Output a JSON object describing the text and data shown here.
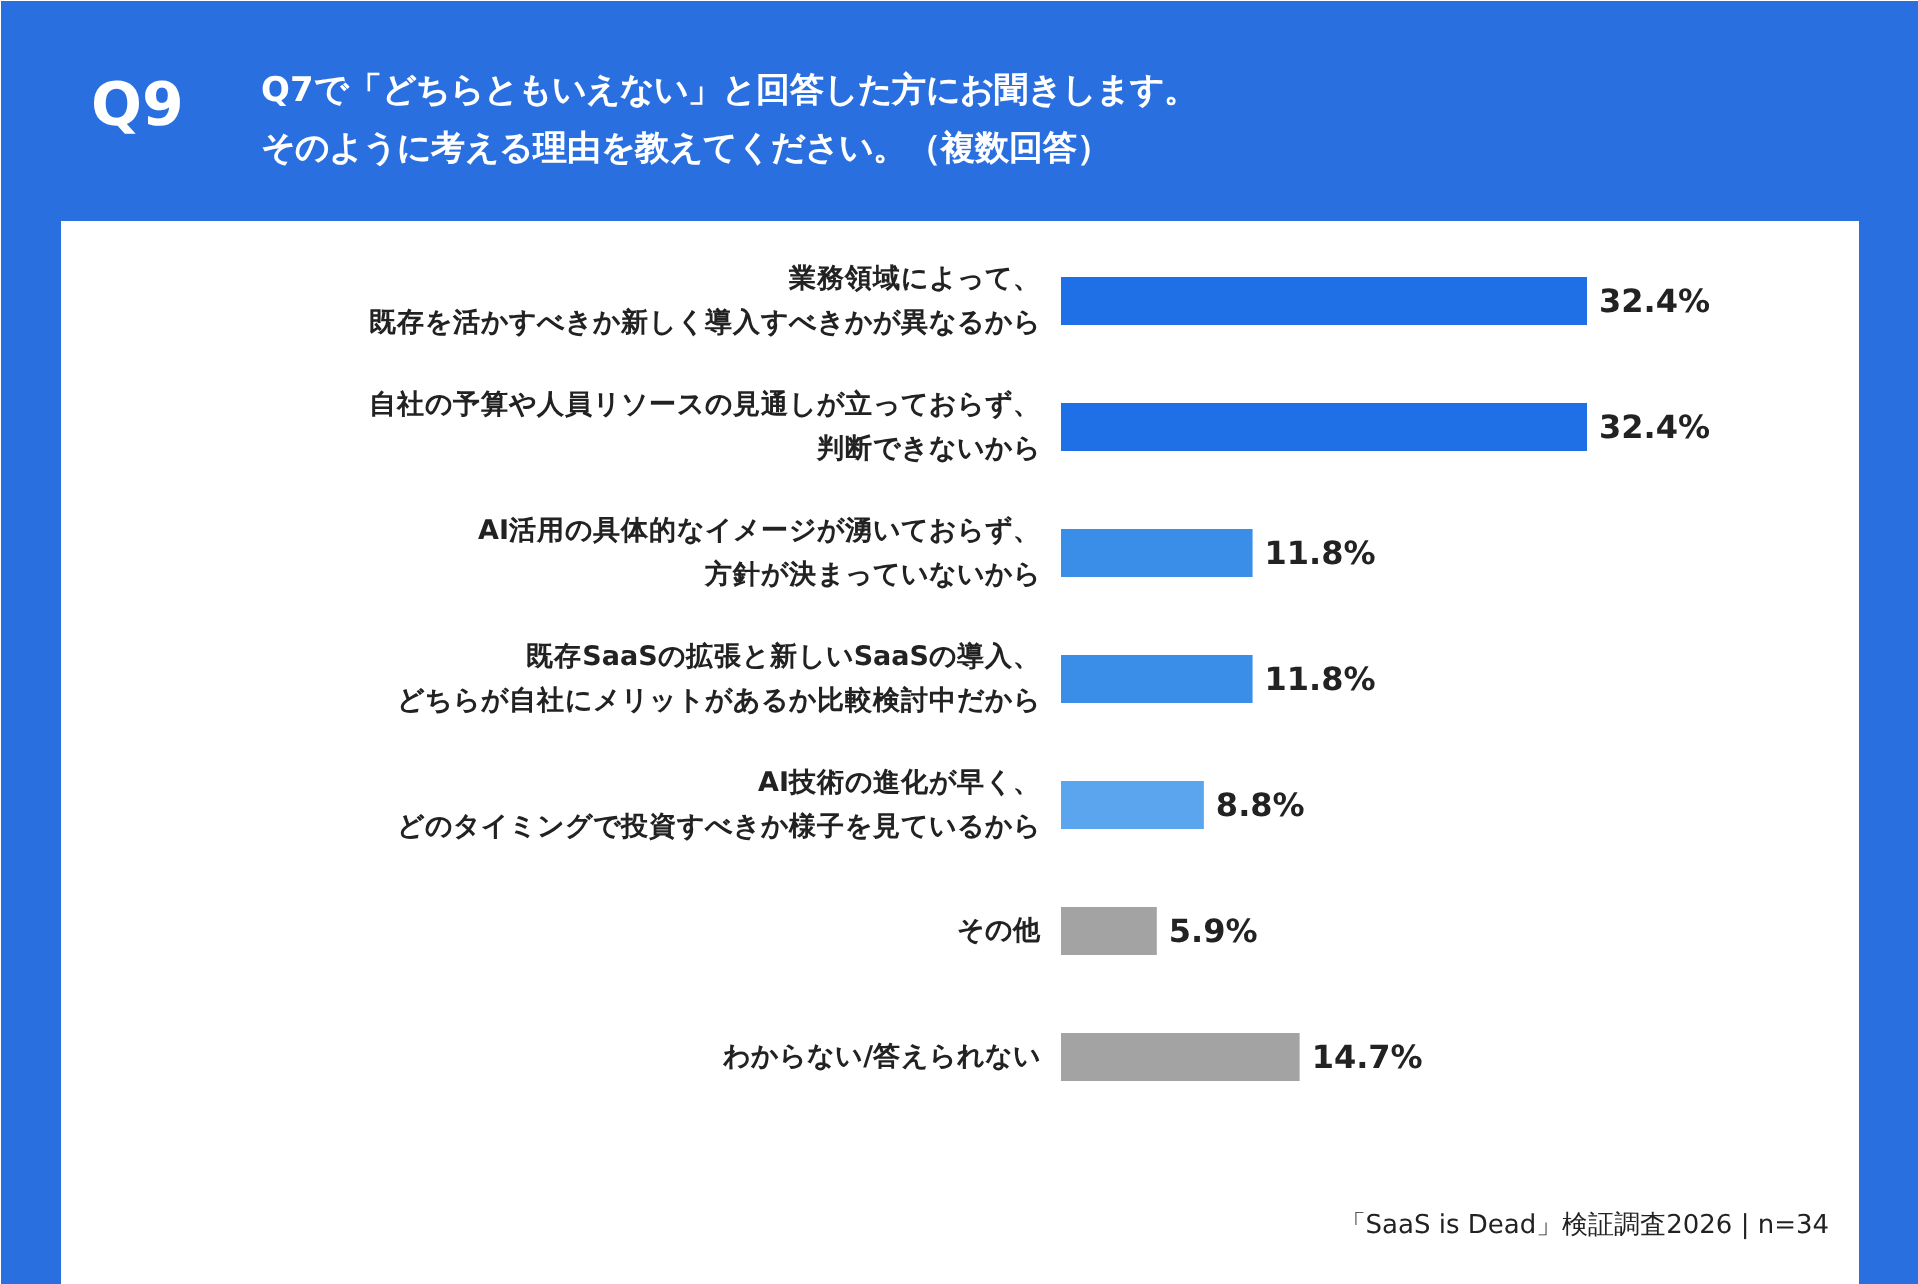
{
  "chart_data": {
    "type": "bar",
    "orientation": "horizontal",
    "title": "Q9",
    "subtitle": "Q7で「どちらともいえない」と回答した方にお聞きします。そのように考える理由を教えてください。（複数回答）",
    "categories": [
      "業務領域によって、既存を活かすべきか新しく導入すべきかが異なるから",
      "自社の予算や人員リソースの見通しが立っておらず、判断できないから",
      "AI活用の具体的なイメージが湧いておらず、方針が決まっていないから",
      "既存SaaSの拡張と新しいSaaSの導入、どちらが自社にメリットがあるか比較検討中だから",
      "AI技術の進化が早く、どのタイミングで投資すべきか様子を見ているから",
      "その他",
      "わからない/答えられない"
    ],
    "values": [
      32.4,
      32.4,
      11.8,
      11.8,
      8.8,
      5.9,
      14.7
    ],
    "colors": [
      "#1f6fe6",
      "#1f6fe6",
      "#3a8ee8",
      "#3a8ee8",
      "#5ba4ee",
      "#a3a3a3",
      "#a3a3a3"
    ],
    "value_labels": [
      "32.4%",
      "32.4%",
      "11.8%",
      "11.8%",
      "8.8%",
      "5.9%",
      "14.7%"
    ],
    "annotations": [
      "「SaaS is Dead」検証調査2026 | n=34"
    ]
  }
}
